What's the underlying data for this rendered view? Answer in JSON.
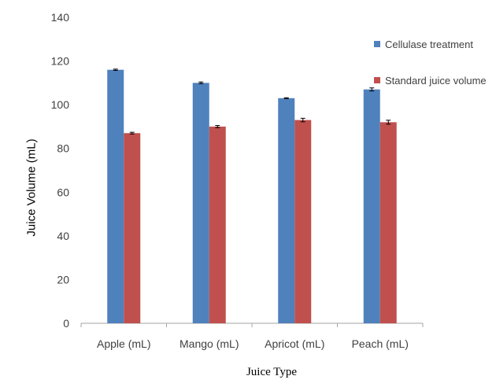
{
  "chart_data": {
    "type": "bar",
    "categories": [
      "Apple (mL)",
      "Mango (mL)",
      "Apricot (mL)",
      "Peach (mL)"
    ],
    "series": [
      {
        "name": "Cellulase treatment",
        "values": [
          116,
          110,
          103,
          107
        ],
        "errors": [
          0.3,
          0.4,
          0.2,
          0.7
        ],
        "color": "#4f81bd"
      },
      {
        "name": "Standard juice volume",
        "values": [
          87,
          90,
          93,
          92
        ],
        "errors": [
          0.4,
          0.5,
          0.8,
          0.9
        ],
        "color": "#c0504d"
      }
    ],
    "xlabel": "Juice Type",
    "ylabel": "Juice Volume (mL)",
    "ylim": [
      0,
      140
    ],
    "yticks": [
      0,
      20,
      40,
      60,
      80,
      100,
      120,
      140
    ],
    "grid": false,
    "legend_position": "top-right"
  }
}
